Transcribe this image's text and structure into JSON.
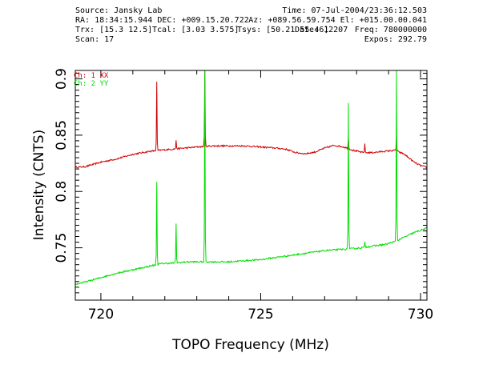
{
  "header": {
    "source": "Source: Jansky Lab",
    "time": "Time: 07-Jul-2004/23:36:12.503",
    "ra_dec": "RA: 18:34:15.944 DEC: +009.15.20.722",
    "az_el": "Az: +089.56.59.754 El: +015.00.00.041",
    "trx": "Trx: [15.3 12.5]",
    "tcal": "Tcal: [3.03 3.575]",
    "tsys": "Tsys: [50.21 55.46]",
    "date": "Date: 12207",
    "freq": "Freq: 780000000",
    "scan": "Scan: 17",
    "expos": "Expos: 292.79"
  },
  "colors": {
    "ch1": "#d00000",
    "ch2": "#00dd00",
    "axis": "#000000"
  },
  "chart_data": {
    "type": "line",
    "title": "",
    "xlabel": "TOPO Frequency (MHz)",
    "ylabel": "Intensity (CNTS)",
    "xlim": [
      719.2,
      730.2
    ],
    "ylim": [
      0.7035,
      0.9075
    ],
    "x_ticks": [
      720,
      725,
      730
    ],
    "x_tick_labels": [
      "720",
      "725",
      "730"
    ],
    "y_ticks": [
      0.75,
      0.8,
      0.85,
      0.9
    ],
    "y_tick_labels": [
      "0.75",
      "0.8",
      "0.85",
      "0.9"
    ],
    "grid": false,
    "legend_position": "top-left",
    "series": [
      {
        "name": "Ch: 1 XX",
        "color": "#d00000",
        "points": [
          [
            719.2,
            0.8215
          ],
          [
            719.5,
            0.822
          ],
          [
            720.0,
            0.826
          ],
          [
            720.5,
            0.829
          ],
          [
            721.0,
            0.833
          ],
          [
            721.5,
            0.8355
          ],
          [
            721.8,
            0.8365
          ],
          [
            722.2,
            0.8375
          ],
          [
            722.6,
            0.8385
          ],
          [
            723.0,
            0.8395
          ],
          [
            723.5,
            0.8405
          ],
          [
            724.0,
            0.8405
          ],
          [
            724.5,
            0.8405
          ],
          [
            725.0,
            0.8395
          ],
          [
            725.5,
            0.8385
          ],
          [
            725.8,
            0.8375
          ],
          [
            726.1,
            0.8345
          ],
          [
            726.4,
            0.8335
          ],
          [
            726.7,
            0.835
          ],
          [
            727.0,
            0.8385
          ],
          [
            727.3,
            0.841
          ],
          [
            727.6,
            0.8395
          ],
          [
            727.9,
            0.8365
          ],
          [
            728.2,
            0.8345
          ],
          [
            728.5,
            0.8345
          ],
          [
            728.8,
            0.8355
          ],
          [
            729.2,
            0.8365
          ],
          [
            729.5,
            0.833
          ],
          [
            729.8,
            0.826
          ],
          [
            730.0,
            0.823
          ],
          [
            730.2,
            0.8215
          ]
        ],
        "spikes": [
          [
            721.75,
            0.8975
          ],
          [
            722.35,
            0.8455
          ],
          [
            723.25,
            0.9075
          ],
          [
            727.75,
            0.8475
          ],
          [
            728.25,
            0.8425
          ],
          [
            729.25,
            0.8495
          ]
        ]
      },
      {
        "name": "Ch: 2 YY",
        "color": "#00dd00",
        "points": [
          [
            719.2,
            0.7175
          ],
          [
            719.5,
            0.7195
          ],
          [
            720.0,
            0.7235
          ],
          [
            720.5,
            0.7275
          ],
          [
            721.0,
            0.7305
          ],
          [
            721.5,
            0.7335
          ],
          [
            721.9,
            0.736
          ],
          [
            722.3,
            0.7365
          ],
          [
            722.7,
            0.7375
          ],
          [
            723.0,
            0.7375
          ],
          [
            723.5,
            0.7375
          ],
          [
            724.0,
            0.7375
          ],
          [
            724.5,
            0.7385
          ],
          [
            725.0,
            0.7395
          ],
          [
            725.5,
            0.7415
          ],
          [
            726.0,
            0.7435
          ],
          [
            726.5,
            0.7455
          ],
          [
            727.0,
            0.7475
          ],
          [
            727.5,
            0.7485
          ],
          [
            728.0,
            0.7495
          ],
          [
            728.5,
            0.7515
          ],
          [
            728.9,
            0.753
          ],
          [
            729.2,
            0.7555
          ],
          [
            729.5,
            0.7595
          ],
          [
            729.8,
            0.7635
          ],
          [
            730.2,
            0.7675
          ]
        ],
        "spikes": [
          [
            721.75,
            0.8085
          ],
          [
            722.35,
            0.7715
          ],
          [
            723.25,
            0.9075
          ],
          [
            727.75,
            0.8785
          ],
          [
            728.25,
            0.7555
          ],
          [
            729.25,
            0.9075
          ]
        ]
      }
    ]
  }
}
